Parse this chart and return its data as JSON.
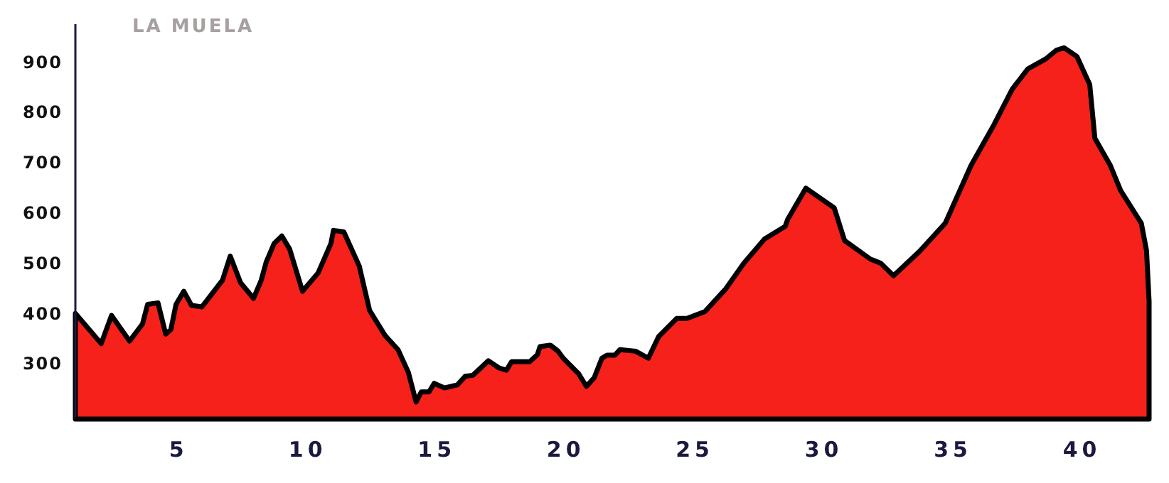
{
  "chart_data": {
    "type": "area",
    "title": "LA MUELA",
    "x": [
      1,
      2.0,
      2.4,
      3.1,
      3.6,
      3.8,
      4.2,
      4.5,
      4.7,
      4.9,
      5.2,
      5.5,
      5.9,
      6.7,
      7.0,
      7.4,
      7.9,
      8.2,
      8.4,
      8.7,
      9.0,
      9.3,
      9.8,
      10.4,
      10.9,
      11.0,
      11.4,
      12.0,
      12.4,
      13.0,
      13.5,
      13.9,
      14.2,
      14.4,
      14.7,
      14.9,
      15.3,
      15.8,
      16.1,
      16.4,
      17.0,
      17.4,
      17.7,
      17.9,
      18.6,
      18.9,
      19.0,
      19.4,
      19.7,
      19.9,
      20.5,
      20.8,
      21.1,
      21.4,
      21.6,
      21.9,
      22.1,
      22.7,
      23.2,
      23.6,
      24.3,
      24.7,
      25.4,
      26.2,
      26.9,
      27.7,
      28.5,
      28.6,
      29.3,
      30.4,
      30.8,
      31.8,
      32.2,
      32.7,
      33.7,
      34.7,
      35.7,
      36.6,
      37.3,
      37.9,
      38.6,
      39.0,
      39.3,
      39.8,
      40.3,
      40.5,
      41.1,
      41.5,
      42.3,
      42.5,
      42.6
    ],
    "series": [
      {
        "color": "#f5211a",
        "values": [
          400,
          340,
          396,
          345,
          379,
          418,
          421,
          359,
          368,
          418,
          444,
          416,
          413,
          466,
          514,
          461,
          430,
          466,
          503,
          539,
          554,
          528,
          444,
          480,
          539,
          565,
          562,
          494,
          406,
          356,
          328,
          283,
          224,
          244,
          244,
          261,
          252,
          258,
          275,
          277,
          306,
          292,
          287,
          304,
          304,
          318,
          334,
          337,
          325,
          311,
          280,
          255,
          272,
          311,
          317,
          317,
          328,
          325,
          311,
          354,
          390,
          390,
          404,
          449,
          500,
          548,
          573,
          587,
          649,
          610,
          545,
          508,
          500,
          475,
          523,
          579,
          694,
          776,
          846,
          886,
          906,
          923,
          928,
          911,
          855,
          748,
          694,
          644,
          579,
          525,
          424
        ]
      }
    ],
    "xlim": [
      1,
      42.6
    ],
    "xticks": [
      5,
      10,
      15,
      20,
      25,
      30,
      35,
      40
    ],
    "ylim": [
      190,
      975
    ],
    "yticks": [
      300,
      400,
      500,
      600,
      700,
      800,
      900
    ]
  }
}
